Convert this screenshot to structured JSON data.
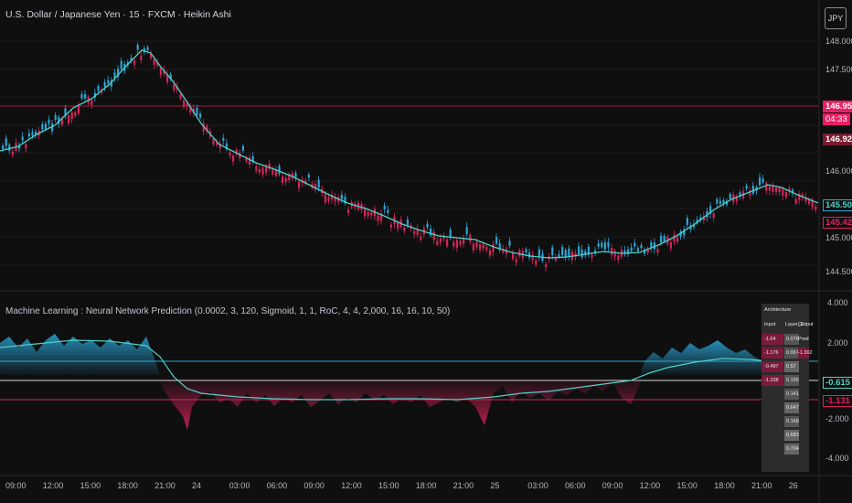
{
  "header": {
    "symbol_line": "U.S. Dollar / Japanese Yen · 15 · FXCM · Heikin Ashi",
    "currency_button": "JPY"
  },
  "indicator": {
    "title": "Machine Learning : Neural Network Prediction (0.0002, 3, 120, Sigmoid, 1, 1, RoC, 4, 4, 2,000, 16, 16, 10, 50)"
  },
  "price_axis": {
    "ticks": [
      "148.000",
      "147.500",
      "146.000",
      "145.000",
      "144.500"
    ],
    "labels": {
      "bid": "146.952",
      "countdown": "04:33",
      "ask": "146.926",
      "ma": "145.502",
      "close": "145.428"
    }
  },
  "indicator_axis": {
    "ticks": [
      "4.000",
      "2.000",
      "-2.000",
      "-4.000"
    ],
    "labels": {
      "upper": "-0.615",
      "lower": "-1.131"
    }
  },
  "time_axis": {
    "ticks": [
      "09:00",
      "12:00",
      "15:00",
      "18:00",
      "21:00",
      "24",
      "03:00",
      "06:00",
      "09:00",
      "12:00",
      "15:00",
      "18:00",
      "21:00",
      "25",
      "03:00",
      "06:00",
      "09:00",
      "12:00",
      "15:00",
      "18:00",
      "21:00",
      "26"
    ]
  },
  "architecture_table": {
    "title": "Architecture",
    "headers": [
      "Input",
      "Layer_2",
      "Output"
    ],
    "inputs": [
      "-1.04",
      "-1.176",
      "-0.497",
      "-1.338"
    ],
    "layer2": [
      "0.076",
      "0.067",
      "0.57",
      "0.155",
      "0.141",
      "0.647",
      "0.168",
      "0.683",
      "0.704"
    ],
    "outputs": [
      "Pred",
      "-1.302"
    ]
  },
  "colors": {
    "background": "#0f0f0f",
    "bull": "#2aa5d6",
    "bear": "#d6245a",
    "ma_line": "#4fd1c5",
    "label_pink": "#e91e63",
    "label_dark_red": "#7a1a2e"
  }
}
